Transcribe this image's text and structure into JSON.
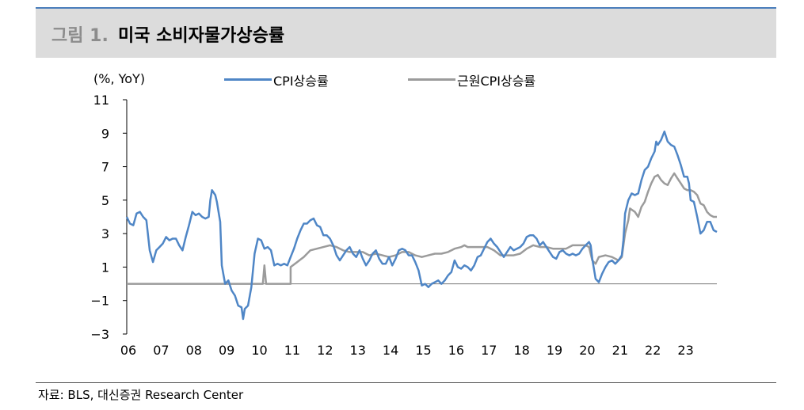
{
  "figure": {
    "label": "그림 1.",
    "title": "미국 소비자물가상승률",
    "source": "자료: BLS, 대신증권 Research Center"
  },
  "chart_data": {
    "type": "line",
    "unit_label": "(%, YoY)",
    "ylim": [
      -3,
      11
    ],
    "yticks": [
      11,
      9,
      7,
      5,
      3,
      1,
      -1,
      -3
    ],
    "ytick_labels": [
      "11",
      "9",
      "7",
      "5",
      "3",
      "1",
      "−1",
      "−3"
    ],
    "xlim": [
      2006.0,
      2024.0
    ],
    "xtick_labels": [
      "06",
      "07",
      "08",
      "09",
      "10",
      "11",
      "12",
      "13",
      "14",
      "15",
      "16",
      "17",
      "18",
      "19",
      "20",
      "21",
      "22",
      "23"
    ],
    "grid": false,
    "legend_position": "top",
    "series": [
      {
        "name": "CPI상승률",
        "color": "#4f86c6",
        "points": [
          [
            2006.0,
            4.0
          ],
          [
            2006.1,
            3.6
          ],
          [
            2006.2,
            3.5
          ],
          [
            2006.3,
            4.2
          ],
          [
            2006.4,
            4.3
          ],
          [
            2006.5,
            4.0
          ],
          [
            2006.6,
            3.8
          ],
          [
            2006.7,
            2.0
          ],
          [
            2006.8,
            1.3
          ],
          [
            2006.9,
            2.0
          ],
          [
            2007.0,
            2.2
          ],
          [
            2007.1,
            2.4
          ],
          [
            2007.2,
            2.8
          ],
          [
            2007.3,
            2.6
          ],
          [
            2007.4,
            2.7
          ],
          [
            2007.5,
            2.7
          ],
          [
            2007.6,
            2.3
          ],
          [
            2007.7,
            2.0
          ],
          [
            2007.8,
            2.8
          ],
          [
            2007.9,
            3.5
          ],
          [
            2008.0,
            4.3
          ],
          [
            2008.1,
            4.1
          ],
          [
            2008.2,
            4.2
          ],
          [
            2008.3,
            4.0
          ],
          [
            2008.4,
            3.9
          ],
          [
            2008.5,
            4.0
          ],
          [
            2008.55,
            5.0
          ],
          [
            2008.6,
            5.6
          ],
          [
            2008.7,
            5.3
          ],
          [
            2008.75,
            4.9
          ],
          [
            2008.85,
            3.7
          ],
          [
            2008.9,
            1.1
          ],
          [
            2009.0,
            0.0
          ],
          [
            2009.1,
            0.2
          ],
          [
            2009.2,
            -0.4
          ],
          [
            2009.3,
            -0.7
          ],
          [
            2009.4,
            -1.3
          ],
          [
            2009.5,
            -1.4
          ],
          [
            2009.55,
            -2.1
          ],
          [
            2009.6,
            -1.5
          ],
          [
            2009.7,
            -1.3
          ],
          [
            2009.8,
            -0.2
          ],
          [
            2009.9,
            1.8
          ],
          [
            2010.0,
            2.7
          ],
          [
            2010.1,
            2.6
          ],
          [
            2010.2,
            2.1
          ],
          [
            2010.3,
            2.2
          ],
          [
            2010.4,
            2.0
          ],
          [
            2010.5,
            1.1
          ],
          [
            2010.6,
            1.2
          ],
          [
            2010.7,
            1.1
          ],
          [
            2010.8,
            1.2
          ],
          [
            2010.9,
            1.1
          ],
          [
            2011.0,
            1.6
          ],
          [
            2011.1,
            2.1
          ],
          [
            2011.2,
            2.7
          ],
          [
            2011.3,
            3.2
          ],
          [
            2011.4,
            3.6
          ],
          [
            2011.5,
            3.6
          ],
          [
            2011.6,
            3.8
          ],
          [
            2011.7,
            3.9
          ],
          [
            2011.8,
            3.5
          ],
          [
            2011.9,
            3.4
          ],
          [
            2012.0,
            2.9
          ],
          [
            2012.1,
            2.9
          ],
          [
            2012.2,
            2.7
          ],
          [
            2012.3,
            2.3
          ],
          [
            2012.4,
            1.7
          ],
          [
            2012.5,
            1.4
          ],
          [
            2012.6,
            1.7
          ],
          [
            2012.7,
            2.0
          ],
          [
            2012.8,
            2.2
          ],
          [
            2012.9,
            1.8
          ],
          [
            2013.0,
            1.6
          ],
          [
            2013.1,
            2.0
          ],
          [
            2013.2,
            1.5
          ],
          [
            2013.3,
            1.1
          ],
          [
            2013.4,
            1.4
          ],
          [
            2013.5,
            1.8
          ],
          [
            2013.6,
            2.0
          ],
          [
            2013.7,
            1.5
          ],
          [
            2013.8,
            1.2
          ],
          [
            2013.9,
            1.2
          ],
          [
            2014.0,
            1.6
          ],
          [
            2014.1,
            1.1
          ],
          [
            2014.2,
            1.5
          ],
          [
            2014.3,
            2.0
          ],
          [
            2014.4,
            2.1
          ],
          [
            2014.5,
            2.0
          ],
          [
            2014.6,
            1.7
          ],
          [
            2014.7,
            1.7
          ],
          [
            2014.8,
            1.3
          ],
          [
            2014.9,
            0.8
          ],
          [
            2015.0,
            -0.1
          ],
          [
            2015.1,
            0.0
          ],
          [
            2015.2,
            -0.2
          ],
          [
            2015.3,
            0.0
          ],
          [
            2015.4,
            0.1
          ],
          [
            2015.5,
            0.2
          ],
          [
            2015.6,
            0.0
          ],
          [
            2015.7,
            0.2
          ],
          [
            2015.8,
            0.5
          ],
          [
            2015.9,
            0.7
          ],
          [
            2016.0,
            1.4
          ],
          [
            2016.1,
            1.0
          ],
          [
            2016.2,
            0.9
          ],
          [
            2016.3,
            1.1
          ],
          [
            2016.4,
            1.0
          ],
          [
            2016.5,
            0.8
          ],
          [
            2016.6,
            1.1
          ],
          [
            2016.7,
            1.6
          ],
          [
            2016.8,
            1.7
          ],
          [
            2016.9,
            2.1
          ],
          [
            2017.0,
            2.5
          ],
          [
            2017.1,
            2.7
          ],
          [
            2017.2,
            2.4
          ],
          [
            2017.3,
            2.2
          ],
          [
            2017.4,
            1.9
          ],
          [
            2017.5,
            1.6
          ],
          [
            2017.6,
            1.9
          ],
          [
            2017.7,
            2.2
          ],
          [
            2017.8,
            2.0
          ],
          [
            2017.9,
            2.1
          ],
          [
            2018.0,
            2.2
          ],
          [
            2018.1,
            2.4
          ],
          [
            2018.2,
            2.8
          ],
          [
            2018.3,
            2.9
          ],
          [
            2018.4,
            2.9
          ],
          [
            2018.5,
            2.7
          ],
          [
            2018.6,
            2.3
          ],
          [
            2018.7,
            2.5
          ],
          [
            2018.8,
            2.2
          ],
          [
            2018.9,
            1.9
          ],
          [
            2019.0,
            1.6
          ],
          [
            2019.1,
            1.5
          ],
          [
            2019.2,
            1.9
          ],
          [
            2019.3,
            2.0
          ],
          [
            2019.4,
            1.8
          ],
          [
            2019.5,
            1.7
          ],
          [
            2019.6,
            1.8
          ],
          [
            2019.7,
            1.7
          ],
          [
            2019.8,
            1.8
          ],
          [
            2019.9,
            2.1
          ],
          [
            2020.0,
            2.3
          ],
          [
            2020.1,
            2.5
          ],
          [
            2020.15,
            2.3
          ],
          [
            2020.2,
            1.5
          ],
          [
            2020.3,
            0.3
          ],
          [
            2020.4,
            0.1
          ],
          [
            2020.5,
            0.6
          ],
          [
            2020.6,
            1.0
          ],
          [
            2020.7,
            1.3
          ],
          [
            2020.8,
            1.4
          ],
          [
            2020.9,
            1.2
          ],
          [
            2021.0,
            1.4
          ],
          [
            2021.1,
            1.7
          ],
          [
            2021.15,
            2.6
          ],
          [
            2021.2,
            4.2
          ],
          [
            2021.3,
            5.0
          ],
          [
            2021.4,
            5.4
          ],
          [
            2021.5,
            5.3
          ],
          [
            2021.6,
            5.4
          ],
          [
            2021.7,
            6.2
          ],
          [
            2021.8,
            6.8
          ],
          [
            2021.9,
            7.0
          ],
          [
            2022.0,
            7.5
          ],
          [
            2022.1,
            7.9
          ],
          [
            2022.15,
            8.5
          ],
          [
            2022.2,
            8.3
          ],
          [
            2022.3,
            8.6
          ],
          [
            2022.4,
            9.1
          ],
          [
            2022.5,
            8.5
          ],
          [
            2022.6,
            8.3
          ],
          [
            2022.7,
            8.2
          ],
          [
            2022.8,
            7.7
          ],
          [
            2022.9,
            7.1
          ],
          [
            2023.0,
            6.4
          ],
          [
            2023.1,
            6.4
          ],
          [
            2023.15,
            6.0
          ],
          [
            2023.2,
            5.0
          ],
          [
            2023.3,
            4.9
          ],
          [
            2023.4,
            4.0
          ],
          [
            2023.5,
            3.0
          ],
          [
            2023.6,
            3.2
          ],
          [
            2023.7,
            3.7
          ],
          [
            2023.8,
            3.7
          ],
          [
            2023.9,
            3.2
          ],
          [
            2024.0,
            3.1
          ]
        ]
      },
      {
        "name": "근원CPI상승률",
        "color": "#9b9b9b",
        "points": [
          [
            2006.0,
            0.0
          ],
          [
            2010.0,
            0.0
          ],
          [
            2010.15,
            0.0
          ],
          [
            2010.2,
            1.1
          ],
          [
            2010.25,
            0.0
          ],
          [
            2011.0,
            0.0
          ],
          [
            2011.0,
            1.0
          ],
          [
            2011.2,
            1.3
          ],
          [
            2011.4,
            1.6
          ],
          [
            2011.6,
            2.0
          ],
          [
            2011.8,
            2.1
          ],
          [
            2012.0,
            2.2
          ],
          [
            2012.2,
            2.3
          ],
          [
            2012.4,
            2.2
          ],
          [
            2012.6,
            2.0
          ],
          [
            2012.8,
            1.9
          ],
          [
            2013.0,
            1.9
          ],
          [
            2013.2,
            1.9
          ],
          [
            2013.4,
            1.7
          ],
          [
            2013.6,
            1.8
          ],
          [
            2013.8,
            1.7
          ],
          [
            2014.0,
            1.6
          ],
          [
            2014.2,
            1.7
          ],
          [
            2014.4,
            1.9
          ],
          [
            2014.6,
            1.9
          ],
          [
            2014.8,
            1.7
          ],
          [
            2015.0,
            1.6
          ],
          [
            2015.2,
            1.7
          ],
          [
            2015.4,
            1.8
          ],
          [
            2015.6,
            1.8
          ],
          [
            2015.8,
            1.9
          ],
          [
            2016.0,
            2.1
          ],
          [
            2016.2,
            2.2
          ],
          [
            2016.3,
            2.3
          ],
          [
            2016.4,
            2.2
          ],
          [
            2016.6,
            2.2
          ],
          [
            2016.8,
            2.2
          ],
          [
            2017.0,
            2.2
          ],
          [
            2017.2,
            2.0
          ],
          [
            2017.4,
            1.7
          ],
          [
            2017.6,
            1.7
          ],
          [
            2017.8,
            1.7
          ],
          [
            2018.0,
            1.8
          ],
          [
            2018.2,
            2.1
          ],
          [
            2018.4,
            2.3
          ],
          [
            2018.6,
            2.2
          ],
          [
            2018.8,
            2.2
          ],
          [
            2019.0,
            2.1
          ],
          [
            2019.2,
            2.1
          ],
          [
            2019.4,
            2.1
          ],
          [
            2019.6,
            2.3
          ],
          [
            2019.8,
            2.3
          ],
          [
            2020.0,
            2.3
          ],
          [
            2020.1,
            2.2
          ],
          [
            2020.2,
            1.4
          ],
          [
            2020.3,
            1.2
          ],
          [
            2020.4,
            1.6
          ],
          [
            2020.6,
            1.7
          ],
          [
            2020.8,
            1.6
          ],
          [
            2021.0,
            1.4
          ],
          [
            2021.1,
            1.6
          ],
          [
            2021.2,
            3.0
          ],
          [
            2021.3,
            3.8
          ],
          [
            2021.35,
            4.5
          ],
          [
            2021.5,
            4.3
          ],
          [
            2021.6,
            4.0
          ],
          [
            2021.7,
            4.6
          ],
          [
            2021.8,
            4.9
          ],
          [
            2021.9,
            5.5
          ],
          [
            2022.0,
            6.0
          ],
          [
            2022.1,
            6.4
          ],
          [
            2022.2,
            6.5
          ],
          [
            2022.3,
            6.2
          ],
          [
            2022.4,
            6.0
          ],
          [
            2022.5,
            5.9
          ],
          [
            2022.6,
            6.3
          ],
          [
            2022.7,
            6.6
          ],
          [
            2022.8,
            6.3
          ],
          [
            2022.9,
            6.0
          ],
          [
            2023.0,
            5.7
          ],
          [
            2023.1,
            5.6
          ],
          [
            2023.2,
            5.6
          ],
          [
            2023.3,
            5.5
          ],
          [
            2023.4,
            5.3
          ],
          [
            2023.5,
            4.8
          ],
          [
            2023.6,
            4.7
          ],
          [
            2023.7,
            4.3
          ],
          [
            2023.8,
            4.1
          ],
          [
            2023.9,
            4.0
          ],
          [
            2024.0,
            4.0
          ]
        ]
      }
    ]
  }
}
